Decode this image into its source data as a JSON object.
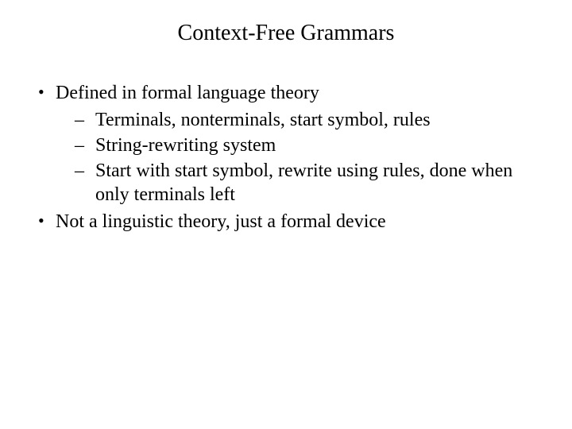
{
  "slide": {
    "title": "Context-Free Grammars",
    "title_fontsize": 28,
    "body_fontsize": 24,
    "font_family": "Times New Roman",
    "background_color": "#ffffff",
    "text_color": "#000000",
    "bullets": [
      {
        "text": "Defined in formal language theory",
        "children": [
          {
            "text": "Terminals, nonterminals, start symbol, rules"
          },
          {
            "text": "String-rewriting system"
          },
          {
            "text": "Start with start symbol, rewrite using rules, done when only terminals left"
          }
        ]
      },
      {
        "text": "Not a linguistic theory, just a formal device",
        "children": []
      }
    ]
  }
}
